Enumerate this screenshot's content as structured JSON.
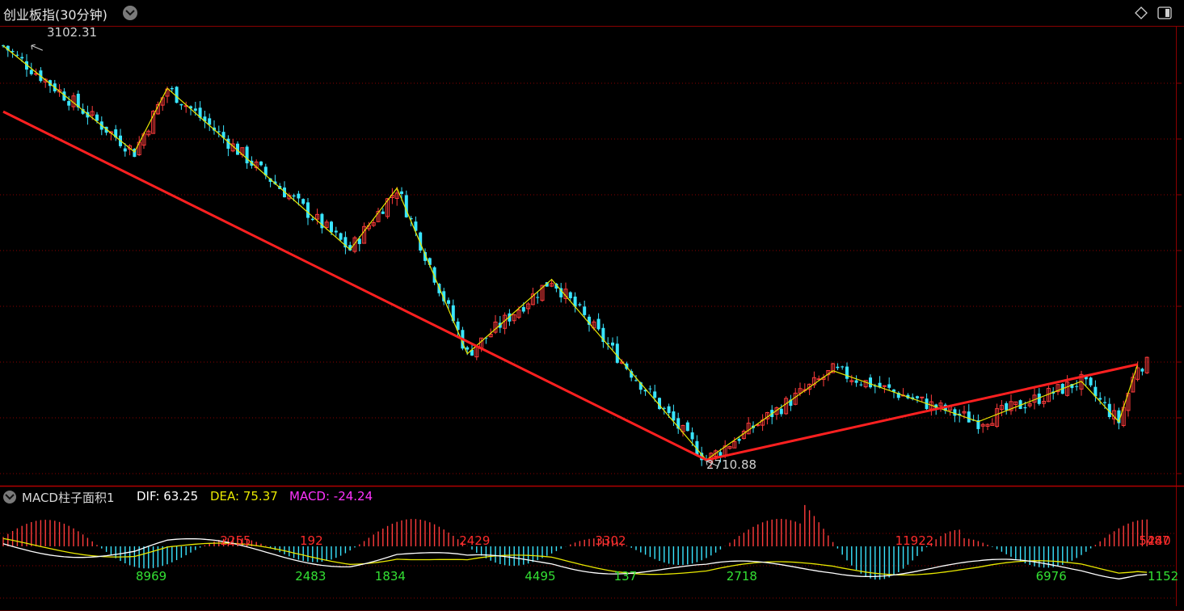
{
  "header": {
    "title": "创业板指(30分钟)"
  },
  "price_annotations": {
    "high_label": "3102.31",
    "low_label": "2710.88"
  },
  "macd_header": {
    "name": "MACD柱子面积1",
    "dif_label": "DIF: 63.25",
    "dea_label": "DEA: 75.37",
    "macd_label": "MACD: -24.24"
  },
  "colors": {
    "up": "#ff3b3b",
    "down": "#39e5ff",
    "zigzag": "#e8e800",
    "trend": "#ff2020",
    "dif": "#ffffff",
    "dea": "#e8e800",
    "grid": "#8a0000",
    "area_green": "#33e033",
    "area_red": "#ff2b2b"
  },
  "chart_data": [
    {
      "type": "candlestick",
      "title": "创业板指(30分钟)",
      "ylim": [
        2690,
        3120
      ],
      "annotations": [
        {
          "text": "3102.31",
          "index": 6,
          "value": 3102.31
        },
        {
          "text": "2710.88",
          "index": 150,
          "value": 2710.88
        }
      ],
      "zigzag_pivots": [
        {
          "index": 0,
          "value": 3102
        },
        {
          "index": 28,
          "value": 3002
        },
        {
          "index": 35,
          "value": 3062
        },
        {
          "index": 74,
          "value": 2910
        },
        {
          "index": 84,
          "value": 2968
        },
        {
          "index": 99,
          "value": 2812
        },
        {
          "index": 117,
          "value": 2882
        },
        {
          "index": 150,
          "value": 2712
        },
        {
          "index": 177,
          "value": 2796
        },
        {
          "index": 208,
          "value": 2748
        },
        {
          "index": 230,
          "value": 2786
        },
        {
          "index": 238,
          "value": 2748
        },
        {
          "index": 242,
          "value": 2802
        }
      ],
      "trendlines": [
        {
          "from": {
            "index": 0,
            "value": 3040
          },
          "to": {
            "index": 150,
            "value": 2712
          }
        },
        {
          "from": {
            "index": 150,
            "value": 2712
          },
          "to": {
            "index": 242,
            "value": 2802
          }
        }
      ]
    },
    {
      "type": "bar",
      "title": "MACD柱子面积1",
      "series": [
        {
          "name": "DIF",
          "last": 63.25
        },
        {
          "name": "DEA",
          "last": 75.37
        },
        {
          "name": "MACD",
          "last": -24.24
        }
      ],
      "area_labels": [
        {
          "text": "8969",
          "sign": "neg",
          "index": 30
        },
        {
          "text": "2255",
          "sign": "pos",
          "index": 48
        },
        {
          "text": "192",
          "sign": "pos",
          "index": 65
        },
        {
          "text": "2483",
          "sign": "neg",
          "index": 64
        },
        {
          "text": "1834",
          "sign": "neg",
          "index": 81
        },
        {
          "text": "2429",
          "sign": "pos",
          "index": 99
        },
        {
          "text": "4495",
          "sign": "neg",
          "index": 113
        },
        {
          "text": "3302",
          "sign": "pos",
          "index": 128
        },
        {
          "text": "137",
          "sign": "neg",
          "index": 132
        },
        {
          "text": "2718",
          "sign": "neg",
          "index": 156
        },
        {
          "text": "11922",
          "sign": "pos",
          "index": 192
        },
        {
          "text": "6976",
          "sign": "neg",
          "index": 222
        },
        {
          "text": "5487",
          "sign": "pos",
          "index": 244
        },
        {
          "text": "1152",
          "sign": "neg",
          "index": 250
        },
        {
          "text": "240",
          "sign": "pos",
          "index": 256
        }
      ]
    }
  ]
}
